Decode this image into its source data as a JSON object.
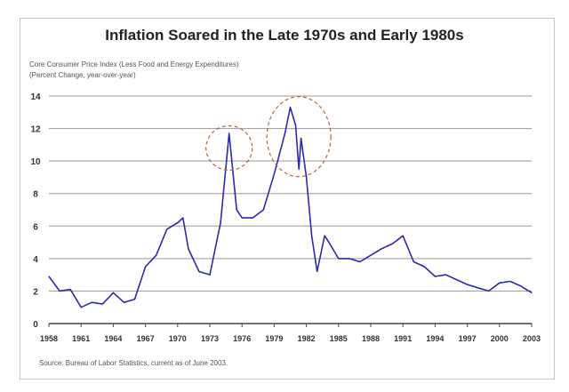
{
  "title": "Inflation Soared in the Late 1970s and Early 1980s",
  "subtitle1": "Core Consumer Price Index (Less Food and Energy Expenditures)",
  "subtitle2": "(Percent Change, year-over-year)",
  "source": "Source: Bureau of Labor Statistics, current as of June 2003.",
  "colors": {
    "line": "#2b2bb0",
    "highlight": "#b5653a",
    "grid": "#999999"
  },
  "chart_data": {
    "type": "line",
    "title": "Inflation Soared in the Late 1970s and Early 1980s",
    "ylabel": "Core Consumer Price Index (Less Food and Energy Expenditures) (Percent Change, year-over-year)",
    "xlim": [
      1958,
      2003
    ],
    "ylim": [
      0,
      14
    ],
    "yticks": [
      "0",
      "2",
      "4",
      "6",
      "8",
      "10",
      "12",
      "14"
    ],
    "xticks": [
      "1958",
      "1961",
      "1964",
      "1967",
      "1970",
      "1973",
      "1976",
      "1979",
      "1982",
      "1985",
      "1988",
      "1991",
      "1994",
      "1997",
      "2000",
      "2003"
    ],
    "grid": "horizontal",
    "annotations": [
      "dashed circle around 1975 peak",
      "dashed circle around 1980-1982 peaks"
    ],
    "x": [
      1958,
      1959,
      1960,
      1961,
      1962,
      1963,
      1964,
      1965,
      1966,
      1967,
      1968,
      1969,
      1970,
      1970.5,
      1971,
      1972,
      1973,
      1974,
      1974.8,
      1975.5,
      1976,
      1977,
      1978,
      1979,
      1980,
      1980.5,
      1981,
      1981.3,
      1981.5,
      1982,
      1982.5,
      1983,
      1983.7,
      1984,
      1985,
      1986,
      1987,
      1988,
      1989,
      1990,
      1991,
      1992,
      1993,
      1994,
      1995,
      1996,
      1997,
      1998,
      1999,
      2000,
      2001,
      2002,
      2003
    ],
    "y": [
      2.9,
      2.0,
      2.1,
      1.0,
      1.3,
      1.2,
      1.9,
      1.3,
      1.5,
      3.5,
      4.2,
      5.8,
      6.2,
      6.5,
      4.6,
      3.2,
      3.0,
      6.2,
      11.7,
      7.0,
      6.5,
      6.5,
      7.0,
      9.2,
      11.7,
      13.3,
      12.2,
      9.5,
      11.4,
      9.0,
      5.4,
      3.2,
      5.4,
      5.1,
      4.0,
      4.0,
      3.8,
      4.2,
      4.6,
      4.9,
      5.4,
      3.8,
      3.5,
      2.9,
      3.0,
      2.7,
      2.4,
      2.2,
      2.0,
      2.5,
      2.6,
      2.3,
      1.9
    ]
  }
}
